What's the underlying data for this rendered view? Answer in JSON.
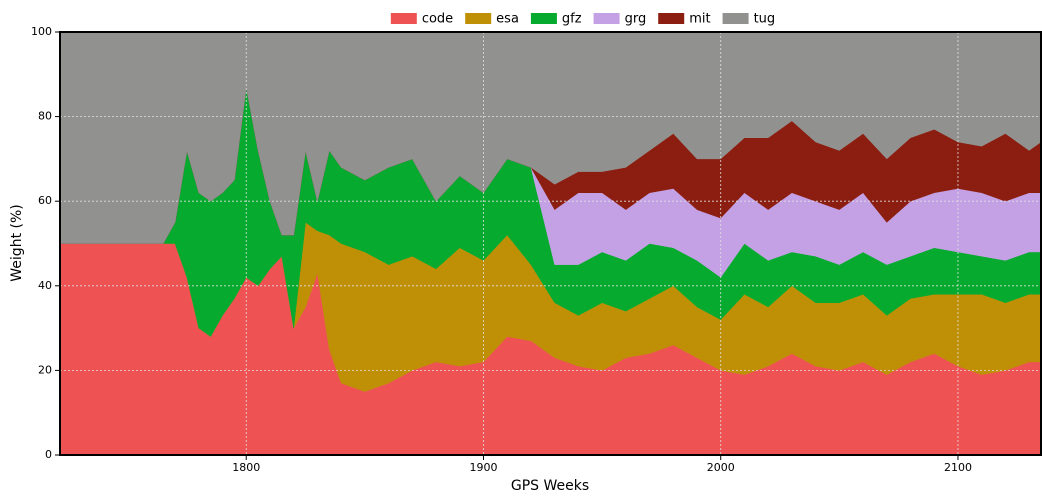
{
  "chart_data": {
    "type": "stacked_area",
    "x_label": "GPS Weeks",
    "y_label": "Weight (%)",
    "x": [
      1722,
      1730,
      1740,
      1750,
      1760,
      1765,
      1770,
      1775,
      1780,
      1785,
      1790,
      1795,
      1800,
      1805,
      1810,
      1815,
      1820,
      1825,
      1830,
      1835,
      1840,
      1850,
      1860,
      1870,
      1880,
      1890,
      1900,
      1910,
      1920,
      1930,
      1940,
      1950,
      1960,
      1970,
      1980,
      1990,
      2000,
      2010,
      2020,
      2030,
      2040,
      2050,
      2060,
      2070,
      2080,
      2090,
      2100,
      2110,
      2120,
      2130,
      2135
    ],
    "series": [
      {
        "name": "code",
        "color": "#ee5253",
        "values": [
          50,
          50,
          50,
          50,
          50,
          50,
          50,
          42,
          30,
          28,
          33,
          37,
          42,
          40,
          44,
          47,
          30,
          35,
          43,
          25,
          17,
          15,
          17,
          20,
          22,
          21,
          22,
          28,
          27,
          23,
          21,
          20,
          23,
          24,
          26,
          23,
          20,
          19,
          21,
          24,
          21,
          20,
          22,
          19,
          22,
          24,
          21,
          19,
          20,
          22,
          22
        ]
      },
      {
        "name": "esa",
        "color": "#bf9006",
        "values": [
          0,
          0,
          0,
          0,
          0,
          0,
          0,
          0,
          0,
          0,
          0,
          0,
          0,
          0,
          0,
          0,
          0,
          20,
          10,
          27,
          33,
          33,
          28,
          27,
          22,
          28,
          24,
          24,
          18,
          13,
          12,
          16,
          11,
          13,
          14,
          12,
          12,
          19,
          14,
          16,
          15,
          16,
          16,
          14,
          15,
          14,
          17,
          19,
          16,
          16,
          16
        ]
      },
      {
        "name": "gfz",
        "color": "#06aa2f",
        "values": [
          0,
          0,
          0,
          0,
          0,
          0,
          5,
          30,
          32,
          32,
          29,
          28,
          45,
          32,
          16,
          5,
          22,
          17,
          7,
          20,
          18,
          17,
          23,
          23,
          16,
          17,
          16,
          18,
          23,
          9,
          12,
          12,
          12,
          13,
          9,
          11,
          10,
          12,
          11,
          8,
          11,
          9,
          10,
          12,
          10,
          11,
          10,
          9,
          10,
          10,
          10
        ]
      },
      {
        "name": "grg",
        "color": "#c4a0e4",
        "values": [
          0,
          0,
          0,
          0,
          0,
          0,
          0,
          0,
          0,
          0,
          0,
          0,
          0,
          0,
          0,
          0,
          0,
          0,
          0,
          0,
          0,
          0,
          0,
          0,
          0,
          0,
          0,
          0,
          0,
          13,
          17,
          14,
          12,
          12,
          14,
          12,
          14,
          12,
          12,
          14,
          13,
          13,
          14,
          10,
          13,
          13,
          15,
          15,
          14,
          14,
          14
        ]
      },
      {
        "name": "mit",
        "color": "#8b1e10",
        "values": [
          0,
          0,
          0,
          0,
          0,
          0,
          0,
          0,
          0,
          0,
          0,
          0,
          0,
          0,
          0,
          0,
          0,
          0,
          0,
          0,
          0,
          0,
          0,
          0,
          0,
          0,
          0,
          0,
          0,
          6,
          5,
          5,
          10,
          10,
          13,
          12,
          14,
          13,
          17,
          17,
          14,
          14,
          14,
          15,
          15,
          15,
          11,
          11,
          16,
          10,
          12
        ]
      },
      {
        "name": "tug",
        "color": "#919290",
        "values": [
          50,
          50,
          50,
          50,
          50,
          50,
          45,
          28,
          38,
          40,
          38,
          35,
          13,
          28,
          40,
          48,
          48,
          28,
          40,
          28,
          32,
          35,
          32,
          30,
          40,
          34,
          38,
          30,
          32,
          36,
          33,
          33,
          32,
          28,
          24,
          30,
          30,
          25,
          25,
          21,
          26,
          28,
          24,
          30,
          25,
          23,
          26,
          27,
          24,
          28,
          26
        ]
      }
    ],
    "xlim": [
      1721.5,
      2135
    ],
    "ylim": [
      0,
      100
    ],
    "xticks": [
      1800,
      1900,
      2000,
      2100
    ],
    "yticks": [
      0,
      20,
      40,
      60,
      80,
      100
    ],
    "grid": true,
    "legend": "top"
  }
}
